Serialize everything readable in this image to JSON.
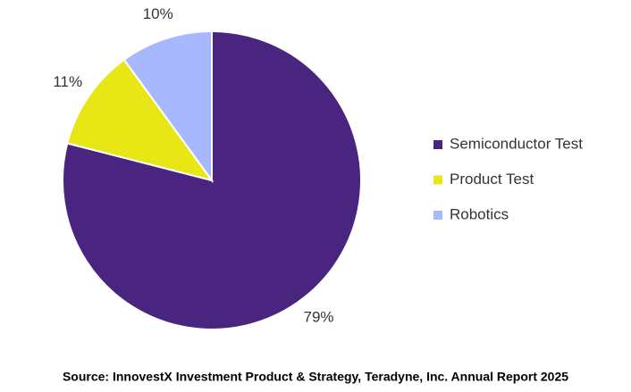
{
  "chart_data": {
    "type": "pie",
    "categories": [
      "Semiconductor Test",
      "Product Test",
      "Robotics"
    ],
    "values": [
      79,
      11,
      10
    ],
    "value_labels": [
      "79%",
      "11%",
      "10%"
    ],
    "colors": [
      "#4a2580",
      "#e8e615",
      "#a8b8ff"
    ],
    "legend": "right",
    "source": "Source: InnovestX Investment Product & Strategy, Teradyne, Inc. Annual Report 2025"
  }
}
